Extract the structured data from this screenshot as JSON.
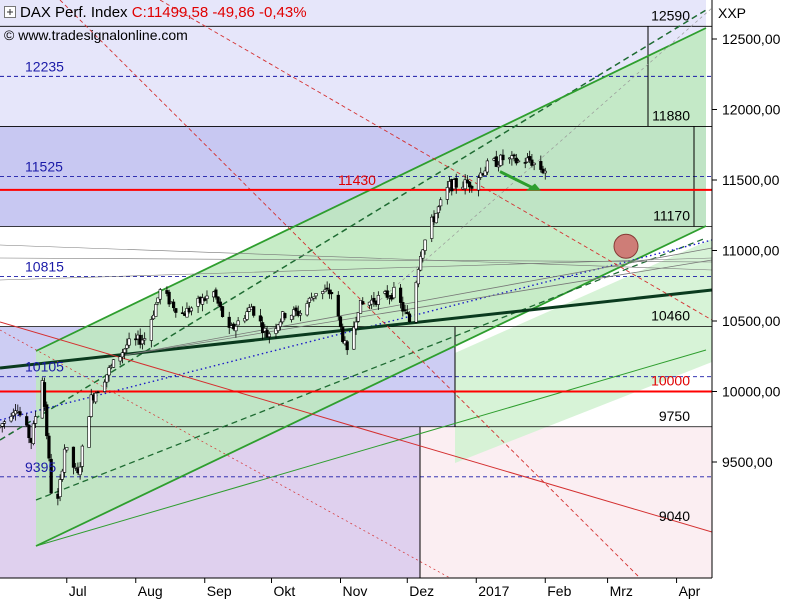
{
  "header": {
    "instrument": "DAX Perf. Index",
    "quote": "C:11499,58 -49,86 -0,43%",
    "source": "© www.tradesignalonline.com",
    "axis_code": "XXP"
  },
  "colors": {
    "up_candle": "#ffffff",
    "down_candle": "#000000",
    "support_red": "#ff0000",
    "channel_green": "#2e9e2e",
    "trend_dark": "#0a3a1e",
    "fib_blue": "#1a1aa8",
    "band_blue": "#c8c8f2",
    "band_pink": "#f0dcef",
    "band_green": "#bde9bd"
  },
  "chart_data": {
    "type": "candlestick",
    "title": "DAX Perf. Index",
    "y_range": [
      9000,
      12700
    ],
    "y_ticks": [
      {
        "value": 12500,
        "label": "12500,00"
      },
      {
        "value": 12000,
        "label": "12000,00"
      },
      {
        "value": 11500,
        "label": "11500,00"
      },
      {
        "value": 11000,
        "label": "11000,00"
      },
      {
        "value": 10500,
        "label": "10500,00"
      },
      {
        "value": 10000,
        "label": "10000,00"
      },
      {
        "value": 9500,
        "label": "9500,00"
      }
    ],
    "x_range": [
      "2016-06-01",
      "2017-04-14"
    ],
    "x_ticks": [
      {
        "date": "2016-07-01",
        "label": "Jul"
      },
      {
        "date": "2016-08-01",
        "label": "Aug"
      },
      {
        "date": "2016-09-01",
        "label": "Sep"
      },
      {
        "date": "2016-10-01",
        "label": "Okt"
      },
      {
        "date": "2016-11-01",
        "label": "Nov"
      },
      {
        "date": "2016-12-01",
        "label": "Dez"
      },
      {
        "date": "2017-01-01",
        "label": "2017"
      },
      {
        "date": "2017-02-01",
        "label": "Feb"
      },
      {
        "date": "2017-03-01",
        "label": "Mrz"
      },
      {
        "date": "2017-04-01",
        "label": "Apr"
      }
    ],
    "level_labels": [
      {
        "value": 12590,
        "label": "12590",
        "side": "right"
      },
      {
        "value": 12235,
        "label": "12235",
        "side": "left"
      },
      {
        "value": 11880,
        "label": "11880",
        "side": "right"
      },
      {
        "value": 11525,
        "label": "11525",
        "side": "left"
      },
      {
        "value": 11430,
        "label": "11430",
        "side": "center"
      },
      {
        "value": 11170,
        "label": "11170",
        "side": "right"
      },
      {
        "value": 10815,
        "label": "10815",
        "side": "left"
      },
      {
        "value": 10460,
        "label": "10460",
        "side": "right"
      },
      {
        "value": 10105,
        "label": "10105",
        "side": "left"
      },
      {
        "value": 10000,
        "label": "10000",
        "side": "right"
      },
      {
        "value": 9750,
        "label": "9750",
        "side": "right"
      },
      {
        "value": 9395,
        "label": "9395",
        "side": "left"
      },
      {
        "value": 9040,
        "label": "9040",
        "side": "right"
      }
    ],
    "horizontal_support": [
      {
        "value": 11430,
        "color": "#ff0000"
      },
      {
        "value": 10000,
        "color": "#ff0000"
      }
    ],
    "price_path": [
      [
        "2016-06-01",
        9750
      ],
      [
        "2016-06-08",
        9900
      ],
      [
        "2016-06-15",
        9650
      ],
      [
        "2016-06-20",
        10100
      ],
      [
        "2016-06-24",
        9300
      ],
      [
        "2016-06-27",
        9220
      ],
      [
        "2016-06-30",
        9600
      ],
      [
        "2016-07-06",
        9400
      ],
      [
        "2016-07-12",
        9950
      ],
      [
        "2016-07-20",
        10150
      ],
      [
        "2016-07-28",
        10330
      ],
      [
        "2016-08-05",
        10380
      ],
      [
        "2016-08-12",
        10710
      ],
      [
        "2016-08-22",
        10550
      ],
      [
        "2016-09-05",
        10700
      ],
      [
        "2016-09-12",
        10420
      ],
      [
        "2016-09-22",
        10600
      ],
      [
        "2016-09-29",
        10400
      ],
      [
        "2016-10-07",
        10550
      ],
      [
        "2016-10-14",
        10560
      ],
      [
        "2016-10-21",
        10710
      ],
      [
        "2016-10-28",
        10700
      ],
      [
        "2016-11-04",
        10260
      ],
      [
        "2016-11-09",
        10600
      ],
      [
        "2016-11-16",
        10650
      ],
      [
        "2016-11-25",
        10700
      ],
      [
        "2016-12-02",
        10500
      ],
      [
        "2016-12-07",
        10990
      ],
      [
        "2016-12-12",
        11200
      ],
      [
        "2016-12-20",
        11460
      ],
      [
        "2016-12-30",
        11480
      ],
      [
        "2017-01-06",
        11600
      ],
      [
        "2017-01-13",
        11650
      ],
      [
        "2017-01-20",
        11630
      ],
      [
        "2017-01-25",
        11640
      ],
      [
        "2017-01-31",
        11570
      ],
      [
        "2017-02-01",
        11570
      ]
    ]
  }
}
